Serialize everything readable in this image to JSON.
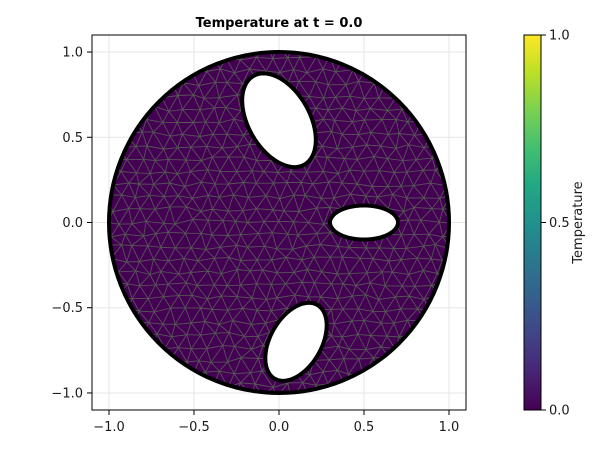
{
  "chart_data": {
    "type": "heatmap",
    "title": "Temperature at t = 0.0",
    "xlabel": "",
    "ylabel": "",
    "xlim": [
      -1.1,
      1.1
    ],
    "ylim": [
      -1.1,
      1.1
    ],
    "xticks": [
      -1.0,
      -0.5,
      0.0,
      0.5,
      1.0
    ],
    "yticks": [
      -1.0,
      -0.5,
      0.0,
      0.5,
      1.0
    ],
    "xtick_labels": [
      "−1.0",
      "−0.5",
      "0.0",
      "0.5",
      "1.0"
    ],
    "ytick_labels": [
      "−1.0",
      "−0.5",
      "0.0",
      "0.5",
      "1.0"
    ],
    "grid": true,
    "domain": {
      "outer_circle": {
        "center": [
          0.0,
          0.0
        ],
        "radius": 1.0
      },
      "holes": [
        {
          "center": [
            0.0,
            0.6
          ],
          "rx": 0.18,
          "ry": 0.3,
          "rotation_deg": 30
        },
        {
          "center": [
            0.5,
            0.0
          ],
          "rx": 0.2,
          "ry": 0.1,
          "rotation_deg": 0
        },
        {
          "center": [
            0.1,
            -0.7
          ],
          "rx": 0.15,
          "ry": 0.25,
          "rotation_deg": -30
        }
      ]
    },
    "field_value": 0.0,
    "colorbar": {
      "label": "Temperature",
      "range": [
        0.0,
        1.0
      ],
      "ticks": [
        0.0,
        0.5,
        1.0
      ],
      "tick_labels": [
        "0.0",
        "0.5",
        "1.0"
      ],
      "colormap": "viridis"
    },
    "colors": {
      "field": "#440154",
      "mesh_edges": "#555555",
      "boundary": "#000000"
    }
  }
}
